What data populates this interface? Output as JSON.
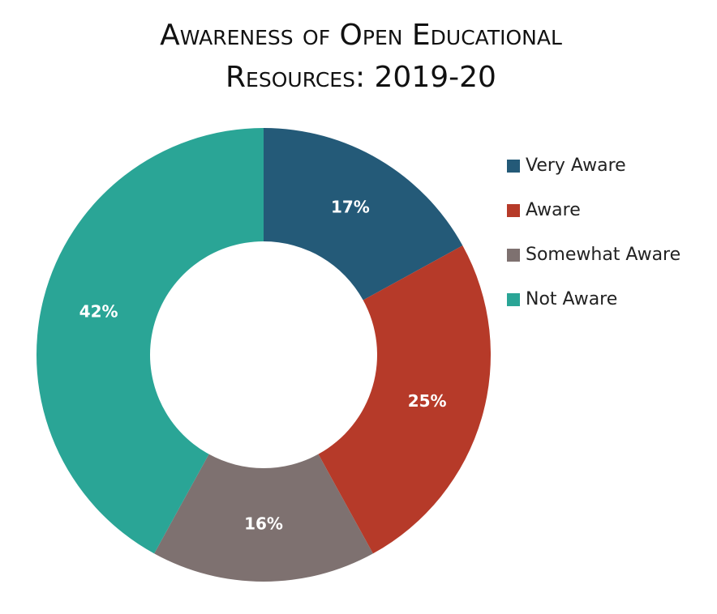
{
  "chart_data": {
    "type": "donut",
    "title": "Awareness of Open Educational Resources: 2019-20",
    "categories": [
      "Very Aware",
      "Aware",
      "Somewhat Aware",
      "Not Aware"
    ],
    "values": [
      17,
      25,
      16,
      42
    ],
    "value_labels": [
      "17%",
      "25%",
      "16%",
      "42%"
    ],
    "colors": [
      "#245a78",
      "#b63a29",
      "#7e7170",
      "#2aa596"
    ],
    "legend": "right"
  }
}
